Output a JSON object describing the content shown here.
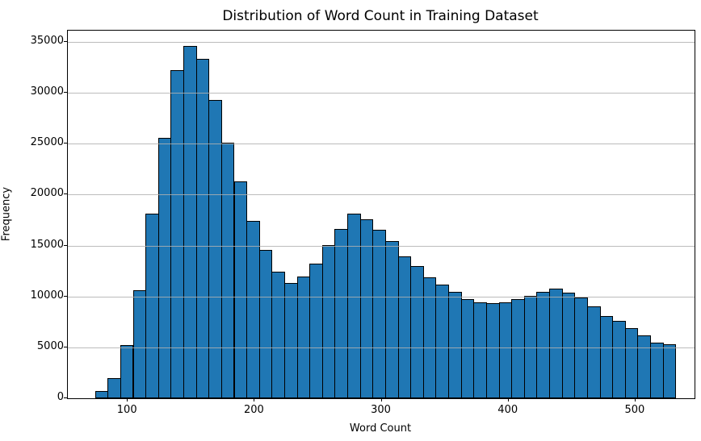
{
  "chart_data": {
    "type": "bar",
    "subtype": "histogram",
    "title": "Distribution of Word Count in Training Dataset",
    "xlabel": "Word Count",
    "ylabel": "Frequency",
    "xlim": [
      52.8,
      546.5
    ],
    "ylim": [
      0,
      36100
    ],
    "grid": "horizontal-only, light gray, drawn over bars",
    "legend": "none",
    "bar_fill_color": "#1f77b4",
    "bar_edge_color": "#000000",
    "bin_start": 74.2,
    "bin_width": 9.94,
    "n_bins": 46,
    "counts": [
      750,
      2000,
      5200,
      10600,
      18100,
      25600,
      32200,
      34600,
      33300,
      29300,
      25100,
      21300,
      17450,
      14600,
      12450,
      11300,
      11950,
      13200,
      15050,
      16600,
      18150,
      17600,
      16550,
      15400,
      13900,
      13000,
      11900,
      11150,
      10450,
      9700,
      9450,
      9350,
      9450,
      9750,
      10050,
      10450,
      10750,
      10400,
      9900,
      9050,
      8100,
      7600,
      6850,
      6200,
      5450,
      5330
    ],
    "x_ticks": [
      100,
      200,
      300,
      400,
      500
    ],
    "x_tick_labels": [
      "100",
      "200",
      "300",
      "400",
      "500"
    ],
    "y_ticks": [
      0,
      5000,
      10000,
      15000,
      20000,
      25000,
      30000,
      35000
    ],
    "y_tick_labels": [
      "0",
      "5000",
      "10000",
      "15000",
      "20000",
      "25000",
      "30000",
      "35000"
    ]
  }
}
